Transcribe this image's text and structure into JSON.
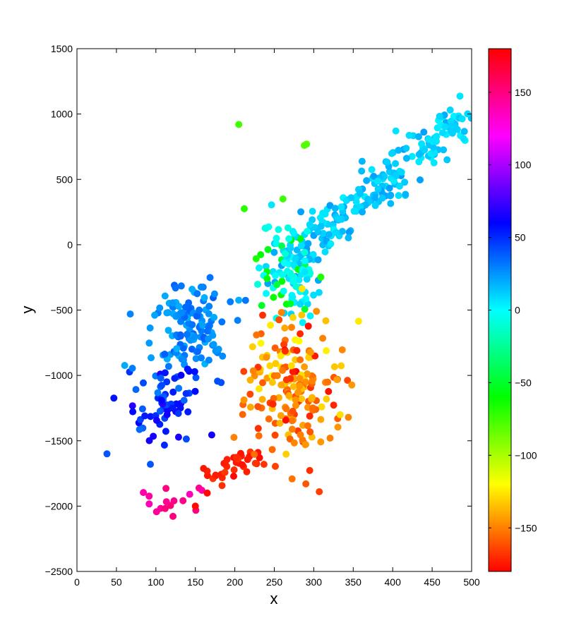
{
  "chart_data": {
    "type": "scatter",
    "xlabel": "x",
    "ylabel": "y",
    "xlim": [
      0,
      500
    ],
    "ylim": [
      -2500,
      1500
    ],
    "x_ticks": [
      "0",
      "50",
      "100",
      "150",
      "200",
      "250",
      "300",
      "350",
      "400",
      "450",
      "500"
    ],
    "y_ticks": [
      "1500",
      "1000",
      "500",
      "0",
      "−500",
      "−1000",
      "−1500",
      "−2000",
      "−2500"
    ],
    "grid": false,
    "colorbar": {
      "range": [
        -180,
        180
      ],
      "colormap": "hsv",
      "ticks": [
        "150",
        "100",
        "50",
        "0",
        "−50",
        "−100",
        "−150"
      ]
    },
    "clusters": [
      {
        "region": "northeast band",
        "x_range": [
          250,
          495
        ],
        "y_range": [
          -200,
          1000
        ],
        "value_range": [
          0,
          25
        ],
        "approx_points": 230
      },
      {
        "region": "central column",
        "x_range": [
          220,
          320
        ],
        "y_range": [
          -600,
          400
        ],
        "value_range": [
          -60,
          10
        ],
        "approx_points": 90
      },
      {
        "region": "west blue group",
        "x_range": [
          40,
          200
        ],
        "y_range": [
          -1700,
          -200
        ],
        "value_range": [
          15,
          70
        ],
        "approx_points": 200
      },
      {
        "region": "south-central orange group",
        "x_range": [
          200,
          340
        ],
        "y_range": [
          -1900,
          -500
        ],
        "value_range": [
          -175,
          -115
        ],
        "approx_points": 230
      },
      {
        "region": "magenta tail",
        "x_range": [
          75,
          165
        ],
        "y_range": [
          -2120,
          -1850
        ],
        "value_range": [
          135,
          155
        ],
        "approx_points": 16
      }
    ],
    "notable_points": [
      {
        "x": 205,
        "y": 920,
        "v": -75
      },
      {
        "x": 212,
        "y": 275,
        "v": -70
      },
      {
        "x": 288,
        "y": 760,
        "v": -80
      },
      {
        "x": 291,
        "y": 770,
        "v": -80
      },
      {
        "x": 261,
        "y": 350,
        "v": -75
      },
      {
        "x": 38,
        "y": -1600,
        "v": 40
      },
      {
        "x": 93,
        "y": -1680,
        "v": 40
      },
      {
        "x": 150,
        "y": -2000,
        "v": -178
      },
      {
        "x": 165,
        "y": -1900,
        "v": -178
      },
      {
        "x": 290,
        "y": -1830,
        "v": -160
      },
      {
        "x": 307,
        "y": -1890,
        "v": -165
      }
    ]
  }
}
